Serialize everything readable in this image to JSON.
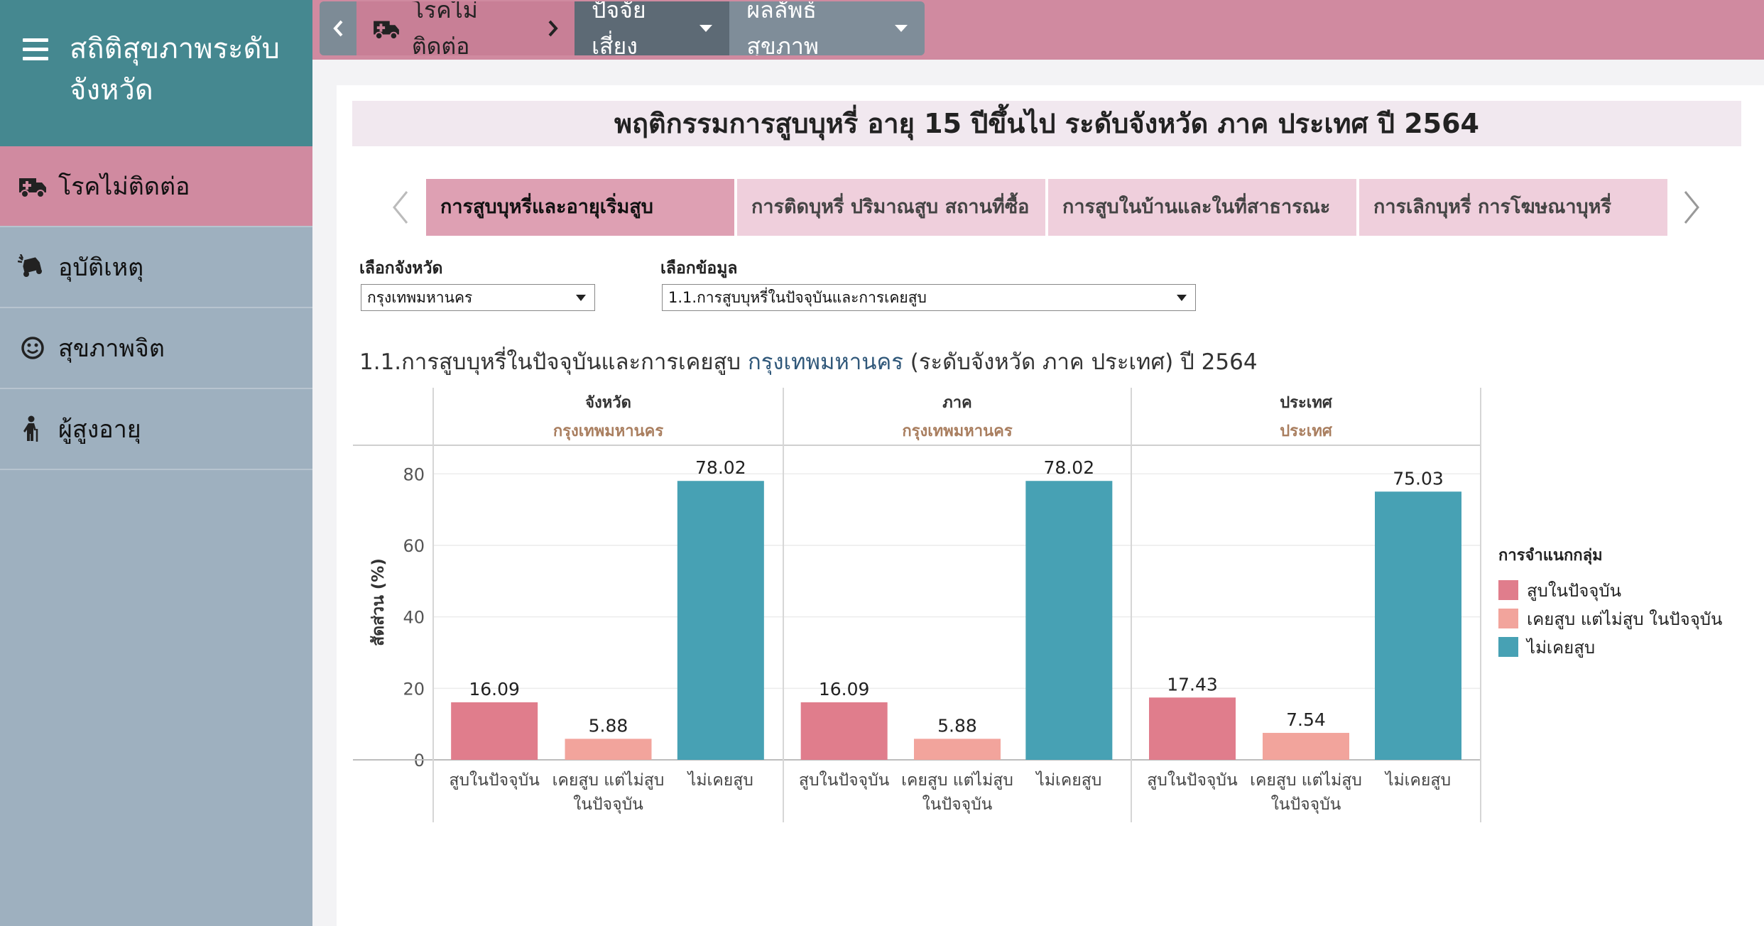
{
  "sidebar": {
    "title": "สถิติสุขภาพระดับจังหวัด",
    "items": [
      {
        "label": "โรคไม่ติดต่อ",
        "icon": "ambulance-icon",
        "active": true
      },
      {
        "label": "อุบัติเหตุ",
        "icon": "car-crash-icon",
        "active": false
      },
      {
        "label": "สุขภาพจิต",
        "icon": "smile-icon",
        "active": false
      },
      {
        "label": "ผู้สูงอายุ",
        "icon": "elderly-icon",
        "active": false
      }
    ]
  },
  "topbar": {
    "breadcrumb": "โรคไม่ติดต่อ",
    "tabs": [
      {
        "label": "ปัจจัยเสี่ยง"
      },
      {
        "label": "ผลลัพธ์สุขภาพ"
      }
    ]
  },
  "page": {
    "title": "พฤติกรรมการสูบบุหรี่ อายุ 15 ปีขึ้นไป ระดับจังหวัด ภาค ประเทศ ปี 2564"
  },
  "subtabs": [
    {
      "label": "การสูบบุหรี่และอายุเริ่มสูบ",
      "active": true
    },
    {
      "label": "การติดบุหรี่ ปริมาณสูบ สถานที่ซื้อ",
      "active": false
    },
    {
      "label": "การสูบในบ้านและในที่สาธารณะ",
      "active": false
    },
    {
      "label": "การเลิกบุหรี่ การโฆษณาบุหรี่",
      "active": false
    }
  ],
  "filters": {
    "province": {
      "label": "เลือกจังหวัด",
      "value": "กรุงเทพมหานคร"
    },
    "data": {
      "label": "เลือกข้อมูล",
      "value": "1.1.การสูบบุหรี่ในปัจจุบันและการเคยสูบ"
    }
  },
  "chart_heading": {
    "prefix": "1.1.การสูบบุหรี่ในปัจจุบันและการเคยสูบ",
    "province": "กรุงเทพมหานคร",
    "suffix": "(ระดับจังหวัด ภาค ประเทศ) ปี 2564"
  },
  "colors": {
    "current": "#e07d8c",
    "former": "#f2a49c",
    "never": "#47a1b4"
  },
  "chart_data": {
    "type": "bar",
    "ylabel": "สัดส่วน (%)",
    "ylim": [
      0,
      88
    ],
    "yticks": [
      0,
      20,
      40,
      60,
      80
    ],
    "categories": [
      "สูบในปัจจุบัน",
      "เคยสูบ แต่ไม่สูบ ในปัจจุบัน",
      "ไม่เคยสูบ"
    ],
    "category_lines": [
      [
        "สูบในปัจจุบัน"
      ],
      [
        "เคยสูบ แต่ไม่สูบ",
        "ในปัจจุบัน"
      ],
      [
        "ไม่เคยสูบ"
      ]
    ],
    "panels": [
      {
        "level": "จังหวัด",
        "area": "กรุงเทพมหานคร",
        "values": [
          16.09,
          5.88,
          78.02
        ]
      },
      {
        "level": "ภาค",
        "area": "กรุงเทพมหานคร",
        "values": [
          16.09,
          5.88,
          78.02
        ]
      },
      {
        "level": "ประเทศ",
        "area": "ประเทศ",
        "values": [
          17.43,
          7.54,
          75.03
        ]
      }
    ],
    "legend": {
      "title": "การจำแนกกลุ่ม",
      "items": [
        "สูบในปัจจุบัน",
        "เคยสูบ แต่ไม่สูบ ในปัจจุบัน",
        "ไม่เคยสูบ"
      ]
    }
  }
}
